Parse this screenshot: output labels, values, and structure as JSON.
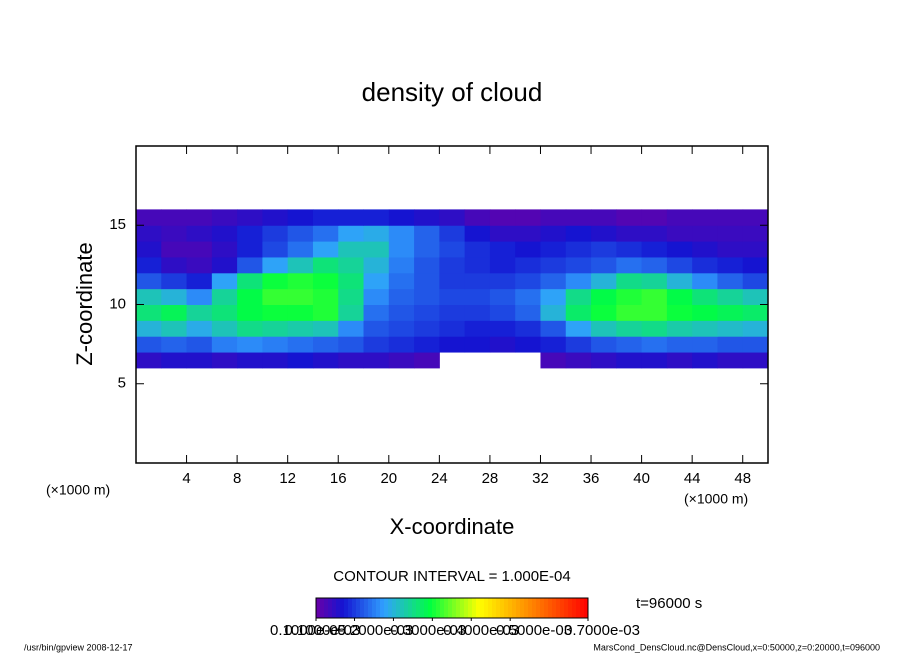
{
  "chart_data": {
    "type": "heatmap",
    "title": "density of cloud",
    "x_label": "X-coordinate",
    "y_label": "Z-coordinate",
    "x_unit_left": "(×1000 m)",
    "x_unit_right": "(×1000 m)",
    "contour_note": "CONTOUR INTERVAL = 1.000E-04",
    "time_note": "t=96000 s",
    "footer_left": "/usr/bin/gpview   2008-12-17",
    "footer_right": "MarsCond_DensCloud.nc@DensCloud,x=0:50000,z=0:20000,t=096000",
    "xlim": [
      0,
      50
    ],
    "ylim": [
      0,
      20
    ],
    "xticks": [
      4,
      8,
      12,
      16,
      20,
      24,
      28,
      32,
      36,
      40,
      44,
      48
    ],
    "yticks": [
      5,
      10,
      15
    ],
    "x": [
      1,
      3,
      5,
      7,
      9,
      11,
      13,
      15,
      17,
      19,
      21,
      23,
      25,
      27,
      29,
      31,
      33,
      35,
      37,
      39,
      41,
      43,
      45,
      47,
      49
    ],
    "y": [
      6.5,
      7.5,
      8.5,
      9.5,
      10.5,
      11.5,
      12.5,
      13.5,
      14.5,
      15.5
    ],
    "values": [
      [
        5e-05,
        6e-05,
        6e-05,
        5e-05,
        6e-05,
        6e-05,
        7e-05,
        6e-05,
        5e-05,
        5e-05,
        4e-05,
        3e-05,
        null,
        null,
        null,
        null,
        3e-05,
        4e-05,
        5e-05,
        6e-05,
        6e-05,
        5e-05,
        6e-05,
        5e-05,
        5e-05
      ],
      [
        0.00012,
        0.00013,
        0.00012,
        0.00015,
        0.00016,
        0.00015,
        0.00014,
        0.00013,
        0.00012,
        0.0001,
        9e-05,
        8e-05,
        7e-05,
        7e-05,
        6e-05,
        7e-05,
        8e-05,
        0.0001,
        0.00012,
        0.00013,
        0.00014,
        0.00013,
        0.00013,
        0.00012,
        0.00012
      ],
      [
        0.0002,
        0.00022,
        0.00019,
        0.00022,
        0.00025,
        0.00024,
        0.00023,
        0.00022,
        0.00016,
        0.00012,
        0.00011,
        0.0001,
        9e-05,
        8e-05,
        8e-05,
        9e-05,
        0.00012,
        0.00018,
        0.00022,
        0.00024,
        0.00025,
        0.00023,
        0.00022,
        0.00021,
        0.0002
      ],
      [
        0.00026,
        0.00028,
        0.00024,
        0.00026,
        0.00029,
        0.0003,
        0.0003,
        0.00031,
        0.00024,
        0.00014,
        0.00012,
        0.00011,
        0.0001,
        0.0001,
        0.00011,
        0.00013,
        0.0002,
        0.00027,
        0.0003,
        0.00032,
        0.00032,
        0.0003,
        0.00029,
        0.00028,
        0.00027
      ],
      [
        0.00022,
        0.0002,
        0.00016,
        0.00024,
        0.00029,
        0.00032,
        0.00032,
        0.00031,
        0.00025,
        0.00016,
        0.00013,
        0.00012,
        0.00011,
        0.00011,
        0.00012,
        0.00014,
        0.00018,
        0.00025,
        0.00029,
        0.00031,
        0.00032,
        0.00029,
        0.00026,
        0.00024,
        0.00022
      ],
      [
        0.00012,
        0.0001,
        8e-05,
        0.00018,
        0.00026,
        0.0003,
        0.00031,
        0.0003,
        0.00026,
        0.00018,
        0.00014,
        0.00012,
        0.0001,
        0.0001,
        0.0001,
        0.00011,
        0.00013,
        0.00016,
        0.0002,
        0.00025,
        0.00024,
        0.0002,
        0.00016,
        0.00013,
        0.00011
      ],
      [
        8e-05,
        5e-05,
        4e-05,
        6e-05,
        0.00012,
        0.00018,
        0.00022,
        0.00026,
        0.00024,
        0.0002,
        0.00015,
        0.00012,
        0.0001,
        9e-05,
        8e-05,
        9e-05,
        0.0001,
        0.00011,
        0.00012,
        0.00014,
        0.00013,
        0.00011,
        9e-05,
        8e-05,
        7e-05
      ],
      [
        6e-05,
        3e-05,
        3e-05,
        5e-05,
        8e-05,
        0.00011,
        0.00014,
        0.00018,
        0.00022,
        0.00022,
        0.00016,
        0.00013,
        0.00011,
        9e-05,
        8e-05,
        7e-05,
        8e-05,
        9e-05,
        0.0001,
        9e-05,
        8e-05,
        7e-05,
        6e-05,
        5e-05,
        5e-05
      ],
      [
        5e-05,
        4e-05,
        5e-05,
        6e-05,
        8e-05,
        0.0001,
        0.00012,
        0.00014,
        0.00018,
        0.00019,
        0.00016,
        0.00013,
        0.0001,
        7e-05,
        5e-05,
        5e-05,
        6e-05,
        7e-05,
        6e-05,
        5e-05,
        5e-05,
        4e-05,
        4e-05,
        4e-05,
        4e-05
      ],
      [
        3e-05,
        3e-05,
        3e-05,
        4e-05,
        5e-05,
        6e-05,
        7e-05,
        8e-05,
        8e-05,
        8e-05,
        7e-05,
        6e-05,
        5e-05,
        3e-05,
        2e-05,
        2e-05,
        3e-05,
        3e-05,
        3e-05,
        2e-05,
        2e-05,
        3e-05,
        3e-05,
        3e-05,
        3e-05
      ]
    ],
    "clim": [
      1e-06,
      0.0007
    ],
    "cticks": [
      {
        "value": 1e-06,
        "label": "0.1000e-05"
      },
      {
        "value": 0.0001,
        "label": "0.1000e-03"
      },
      {
        "value": 0.0002,
        "label": "0.2000e-03"
      },
      {
        "value": 0.0003,
        "label": "0.3000e-03"
      },
      {
        "value": 0.0004,
        "label": "0.4000e-03"
      },
      {
        "value": 0.0005,
        "label": "0.5000e-03"
      },
      {
        "value": 0.0007,
        "label": "0.7000e-03"
      }
    ]
  }
}
